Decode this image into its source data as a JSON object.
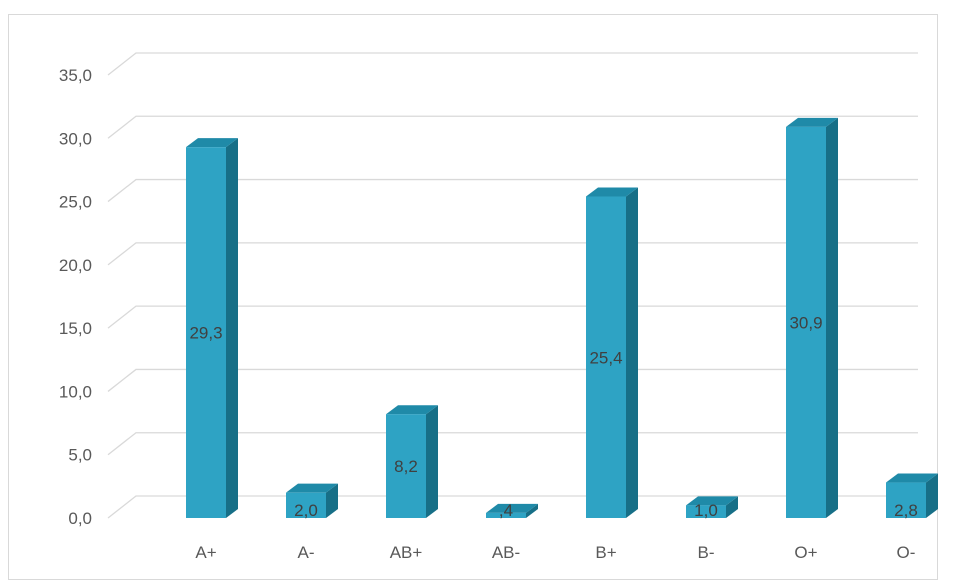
{
  "chart_data": {
    "type": "bar",
    "style": "3d-column",
    "categories": [
      "A+",
      "A-",
      "AB+",
      "AB-",
      "B+",
      "B-",
      "O+",
      "O-"
    ],
    "values": [
      29.3,
      2.0,
      8.2,
      0.4,
      25.4,
      1.0,
      30.9,
      2.8
    ],
    "data_labels": [
      "29,3",
      "2,0",
      "8,2",
      ",4",
      "25,4",
      "1,0",
      "30,9",
      "2,8"
    ],
    "y_ticks": [
      "0,0",
      "5,0",
      "10,0",
      "15,0",
      "20,0",
      "25,0",
      "30,0",
      "35,0"
    ],
    "ylim": [
      0,
      35
    ],
    "title": "",
    "xlabel": "",
    "ylabel": "",
    "grid": true,
    "legend": "none",
    "colors": {
      "bar_front": "#2ea3c4",
      "bar_top": "#1f8aa8",
      "bar_side": "#176f87",
      "grid": "#d9d9d9"
    }
  }
}
